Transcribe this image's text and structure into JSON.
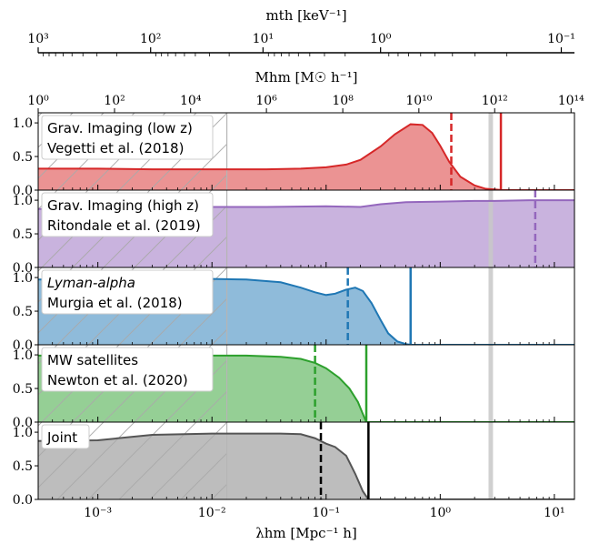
{
  "chart_data": {
    "type": "area",
    "xscale": "log",
    "xlim": [
      0.0003,
      15
    ],
    "xlabel": "λhm [Mpc⁻¹ h]",
    "x_ticks": [
      {
        "value": 0.001,
        "label": "10⁻³"
      },
      {
        "value": 0.01,
        "label": "10⁻²"
      },
      {
        "value": 0.1,
        "label": "10⁻¹"
      },
      {
        "value": 1,
        "label": "10⁰"
      },
      {
        "value": 10,
        "label": "10¹"
      }
    ],
    "top_axes": [
      {
        "label": "Mhm [M☉ h⁻¹]",
        "ticks": [
          {
            "value": 0.0003,
            "label": "10⁰"
          },
          {
            "value": 0.0014,
            "label": "10²"
          },
          {
            "value": 0.0065,
            "label": "10⁴"
          },
          {
            "value": 0.03,
            "label": "10⁶"
          },
          {
            "value": 0.14,
            "label": "10⁸"
          },
          {
            "value": 0.65,
            "label": "10¹⁰"
          },
          {
            "value": 3.0,
            "label": "10¹²"
          },
          {
            "value": 14,
            "label": "10¹⁴"
          }
        ]
      },
      {
        "label": "mth [keV⁻¹]",
        "ticks": [
          {
            "value": 0.0003,
            "label": "10³"
          },
          {
            "value": 0.0029,
            "label": "10²"
          },
          {
            "value": 0.028,
            "label": "10¹"
          },
          {
            "value": 0.3,
            "label": "10⁰"
          },
          {
            "value": 11.5,
            "label": "10⁻¹"
          }
        ]
      }
    ],
    "ylim": [
      0,
      1.15
    ],
    "y_ticks": [
      {
        "value": 0.0,
        "label": "0.0"
      },
      {
        "value": 0.5,
        "label": "0.5"
      },
      {
        "value": 1.0,
        "label": "1.0"
      }
    ],
    "excluded_region_max_x": 0.0135,
    "gray_band": [
      2.65,
      2.9
    ],
    "panels": [
      {
        "legend": [
          "Grav. Imaging (low z)",
          "Vegetti et al. (2018)"
        ],
        "color": "#d62728",
        "fill": "#eb9393",
        "dashed_x": 1.25,
        "solid_x": 3.4,
        "x": [
          0.0003,
          0.001,
          0.003,
          0.01,
          0.03,
          0.06,
          0.1,
          0.15,
          0.2,
          0.3,
          0.4,
          0.55,
          0.7,
          0.85,
          1.0,
          1.2,
          1.5,
          2.0,
          2.5,
          3.0,
          3.5,
          4.0,
          5.0,
          15
        ],
        "y": [
          0.32,
          0.32,
          0.31,
          0.31,
          0.31,
          0.32,
          0.34,
          0.38,
          0.45,
          0.65,
          0.83,
          0.98,
          0.97,
          0.85,
          0.66,
          0.42,
          0.2,
          0.07,
          0.02,
          0.01,
          0,
          0,
          0,
          0
        ]
      },
      {
        "legend": [
          "Grav. Imaging (high z)",
          "Ritondale et al. (2019)"
        ],
        "color": "#9467bd",
        "fill": "#c9b3de",
        "dashed_x": 6.8,
        "solid_x": null,
        "x": [
          0.0003,
          0.001,
          0.003,
          0.01,
          0.03,
          0.1,
          0.2,
          0.3,
          0.5,
          1.0,
          2.0,
          3.0,
          6.0,
          15
        ],
        "y": [
          0.87,
          0.88,
          0.89,
          0.9,
          0.9,
          0.91,
          0.9,
          0.94,
          0.97,
          0.98,
          0.99,
          0.99,
          1.0,
          1.0
        ]
      },
      {
        "legend": [
          "Lyman-alpha",
          "Murgia et al. (2018)"
        ],
        "color": "#1f77b4",
        "fill": "#8fbbda",
        "dashed_x": 0.155,
        "solid_x": 0.55,
        "x": [
          0.0003,
          0.001,
          0.003,
          0.01,
          0.02,
          0.04,
          0.06,
          0.08,
          0.1,
          0.12,
          0.15,
          0.18,
          0.21,
          0.25,
          0.3,
          0.35,
          0.42,
          0.5,
          0.55,
          15
        ],
        "y": [
          0.97,
          0.97,
          0.98,
          0.98,
          0.97,
          0.93,
          0.85,
          0.78,
          0.74,
          0.76,
          0.82,
          0.85,
          0.8,
          0.62,
          0.37,
          0.17,
          0.05,
          0.01,
          0,
          0
        ]
      },
      {
        "legend": [
          "MW satellites",
          "Newton et al. (2020)"
        ],
        "color": "#2ca02c",
        "fill": "#95cf95",
        "dashed_x": 0.08,
        "solid_x": 0.225,
        "x": [
          0.0003,
          0.001,
          0.003,
          0.01,
          0.02,
          0.04,
          0.06,
          0.08,
          0.1,
          0.13,
          0.16,
          0.19,
          0.21,
          0.225,
          15
        ],
        "y": [
          0.99,
          0.99,
          0.99,
          0.99,
          0.99,
          0.97,
          0.94,
          0.88,
          0.8,
          0.66,
          0.5,
          0.3,
          0.12,
          0,
          0
        ]
      },
      {
        "legend": [
          "Joint"
        ],
        "color": "#000000",
        "line_color": "#555555",
        "fill": "#bdbdbd",
        "dashed_x": 0.09,
        "solid_x": 0.235,
        "x": [
          0.0003,
          0.001,
          0.003,
          0.01,
          0.02,
          0.04,
          0.06,
          0.08,
          0.1,
          0.12,
          0.15,
          0.18,
          0.21,
          0.235,
          15
        ],
        "y": [
          0.87,
          0.88,
          0.96,
          0.98,
          0.98,
          0.98,
          0.97,
          0.91,
          0.83,
          0.78,
          0.65,
          0.38,
          0.12,
          0,
          0
        ]
      }
    ]
  }
}
